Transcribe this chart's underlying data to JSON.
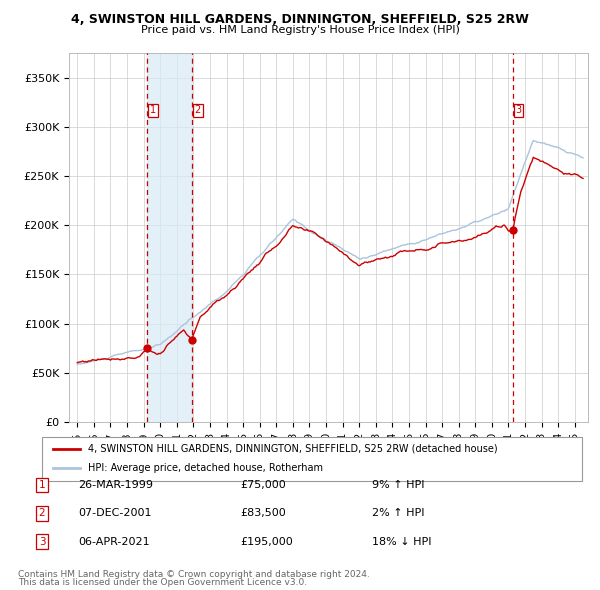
{
  "title": "4, SWINSTON HILL GARDENS, DINNINGTON, SHEFFIELD, S25 2RW",
  "subtitle": "Price paid vs. HM Land Registry's House Price Index (HPI)",
  "legend_line1": "4, SWINSTON HILL GARDENS, DINNINGTON, SHEFFIELD, S25 2RW (detached house)",
  "legend_line2": "HPI: Average price, detached house, Rotherham",
  "transactions": [
    {
      "num": 1,
      "date": "26-MAR-1999",
      "price": 75000,
      "hpi_pct": "9% ↑ HPI",
      "year": 1999.23
    },
    {
      "num": 2,
      "date": "07-DEC-2001",
      "price": 83500,
      "hpi_pct": "2% ↑ HPI",
      "year": 2001.93
    },
    {
      "num": 3,
      "date": "06-APR-2021",
      "price": 195000,
      "hpi_pct": "18% ↓ HPI",
      "year": 2021.27
    }
  ],
  "ylabel_ticks": [
    "£0",
    "£50K",
    "£100K",
    "£150K",
    "£200K",
    "£250K",
    "£300K",
    "£350K"
  ],
  "ytick_vals": [
    0,
    50000,
    100000,
    150000,
    200000,
    250000,
    300000,
    350000
  ],
  "xlim": [
    1994.5,
    2025.8
  ],
  "ylim": [
    0,
    375000
  ],
  "background_color": "#ffffff",
  "grid_color": "#cccccc",
  "hpi_color": "#aac4dd",
  "price_color": "#cc0000",
  "dashed_color": "#cc0000",
  "shade_color": "#d8eaf5",
  "footnote1": "Contains HM Land Registry data © Crown copyright and database right 2024.",
  "footnote2": "This data is licensed under the Open Government Licence v3.0."
}
